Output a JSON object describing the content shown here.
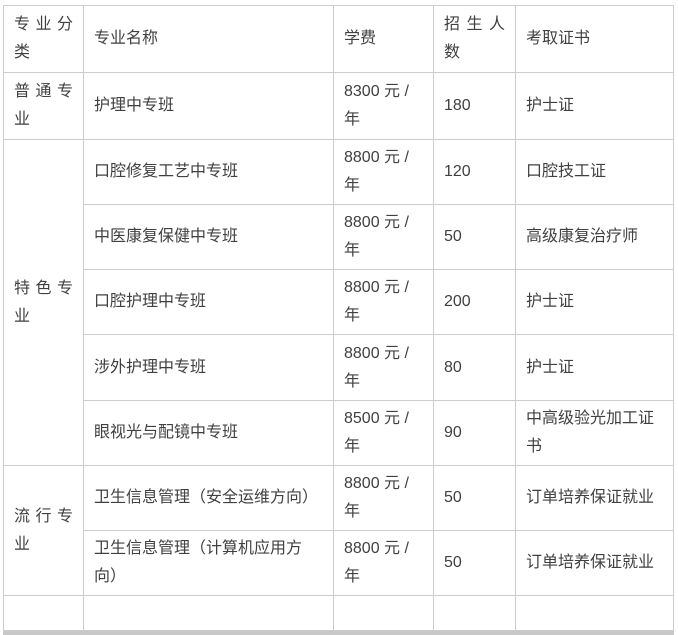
{
  "colors": {
    "text": "#404040",
    "border": "#cccccc",
    "bottom_bar": "#c8c8c8",
    "background": "#ffffff"
  },
  "table": {
    "headers": {
      "category": "专业分类",
      "name": "专业名称",
      "tuition": "学费",
      "enrollment": "招生人数",
      "certificate": "考取证书"
    },
    "groups": [
      {
        "category": "普通专业",
        "rows": [
          {
            "name": "护理中专班",
            "tuition": "8300 元 / 年",
            "enrollment": "180",
            "certificate": "护士证"
          }
        ]
      },
      {
        "category": "特色专业",
        "rows": [
          {
            "name": "口腔修复工艺中专班",
            "tuition": "8800 元 / 年",
            "enrollment": "120",
            "certificate": "口腔技工证"
          },
          {
            "name": "中医康复保健中专班",
            "tuition": "8800 元 / 年",
            "enrollment": "50",
            "certificate": "高级康复治疗师"
          },
          {
            "name": "口腔护理中专班",
            "tuition": "8800 元 / 年",
            "enrollment": "200",
            "certificate": "护士证"
          },
          {
            "name": "涉外护理中专班",
            "tuition": "8800 元 / 年",
            "enrollment": "80",
            "certificate": "护士证"
          },
          {
            "name": "眼视光与配镜中专班",
            "tuition": "8500 元 / 年",
            "enrollment": "90",
            "certificate": "中高级验光加工证书"
          }
        ]
      },
      {
        "category": "流行专业",
        "rows": [
          {
            "name": "卫生信息管理（安全运维方向）",
            "tuition": "8800 元 / 年",
            "enrollment": "50",
            "certificate": "订单培养保证就业"
          },
          {
            "name": "卫生信息管理（计算机应用方向）",
            "tuition": "8800 元 / 年",
            "enrollment": "50",
            "certificate": "订单培养保证就业"
          }
        ]
      }
    ]
  }
}
